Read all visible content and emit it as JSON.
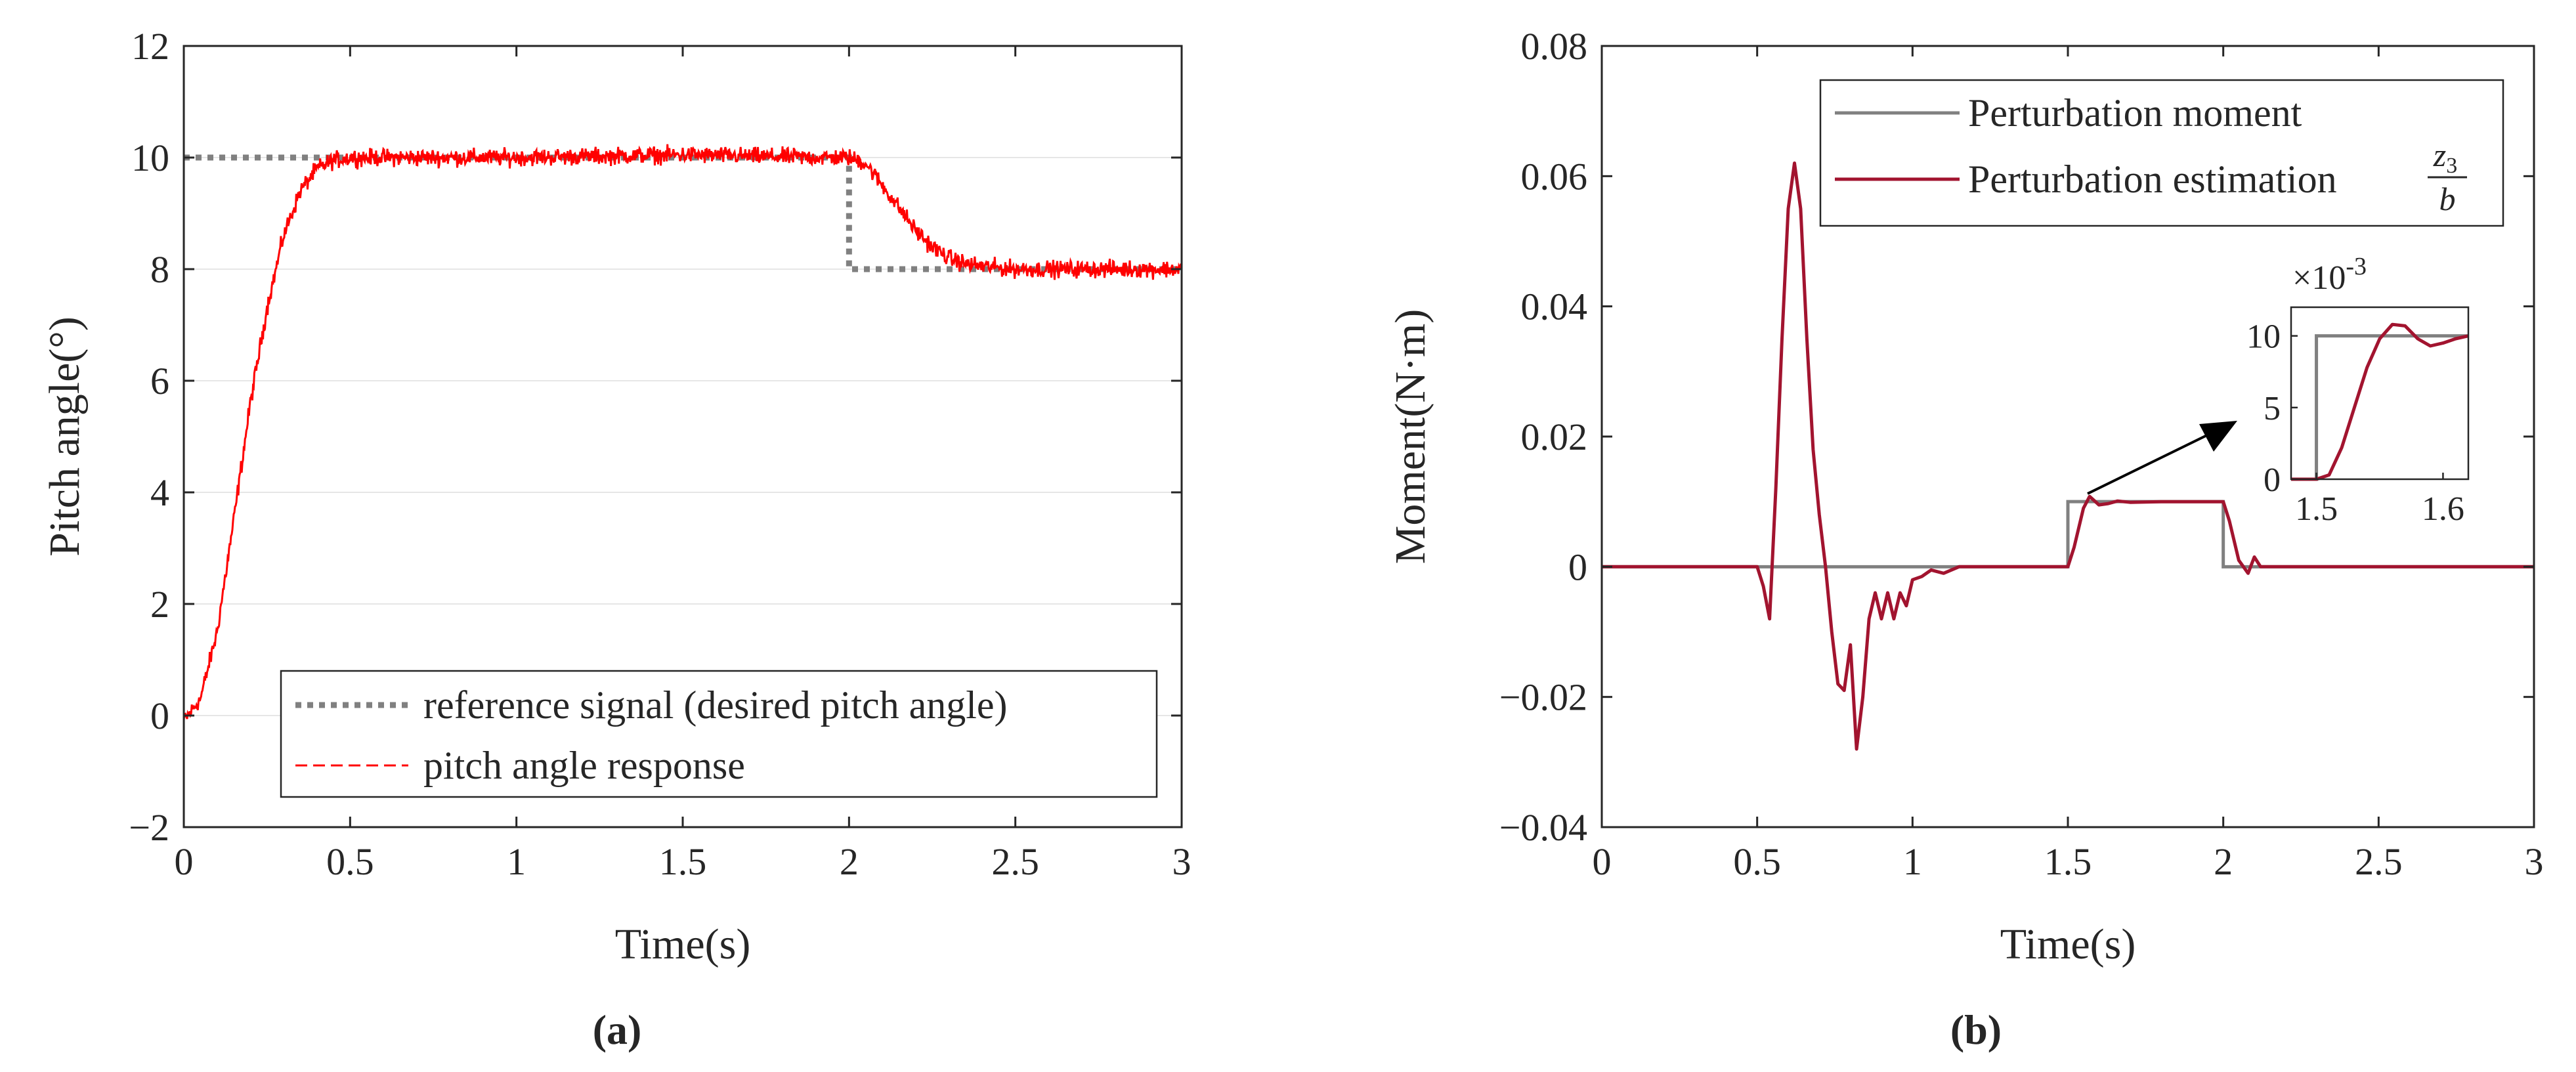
{
  "chart_data": [
    {
      "type": "line",
      "subfigure_label": "(a)",
      "xlabel": "Time(s)",
      "ylabel": "Pitch angle(°)",
      "xlim": [
        0,
        3
      ],
      "ylim": [
        -2,
        12
      ],
      "xticks": [
        0,
        0.5,
        1,
        1.5,
        2,
        2.5,
        3
      ],
      "xtick_labels": [
        "0",
        "0.5",
        "1",
        "1.5",
        "2",
        "2.5",
        "3"
      ],
      "yticks": [
        -2,
        0,
        2,
        4,
        6,
        8,
        10,
        12
      ],
      "ytick_labels": [
        "−2",
        "0",
        "2",
        "4",
        "6",
        "8",
        "10",
        "12"
      ],
      "grid": "horizontal",
      "legend_position": "bottom-right",
      "series": [
        {
          "name": "reference signal (desired pitch angle)",
          "color": "#808080",
          "style": "dotted",
          "x": [
            0,
            2,
            2,
            3
          ],
          "y": [
            10,
            10,
            8,
            8
          ]
        },
        {
          "name": "pitch angle response",
          "color": "#ff0000",
          "style": "dashed",
          "x": [
            0,
            0.05,
            0.1,
            0.15,
            0.2,
            0.25,
            0.3,
            0.35,
            0.4,
            0.45,
            0.5,
            0.6,
            1.0,
            1.5,
            1.9,
            2.0,
            2.05,
            2.1,
            2.15,
            2.2,
            2.25,
            2.3,
            2.35,
            2.4,
            2.5,
            3.0
          ],
          "y": [
            -0.1,
            0.3,
            1.5,
            3.5,
            5.6,
            7.3,
            8.6,
            9.4,
            9.8,
            9.95,
            10.0,
            10.0,
            10.0,
            10.05,
            10.0,
            10.0,
            9.9,
            9.5,
            9.1,
            8.7,
            8.4,
            8.2,
            8.1,
            8.05,
            8.0,
            8.0
          ],
          "noise_amplitude": 0.15
        }
      ]
    },
    {
      "type": "line",
      "subfigure_label": "(b)",
      "xlabel": "Time(s)",
      "ylabel": "Moment(N·m)",
      "xlim": [
        0,
        3
      ],
      "ylim": [
        -0.04,
        0.08
      ],
      "xticks": [
        0,
        0.5,
        1,
        1.5,
        2,
        2.5,
        3
      ],
      "xtick_labels": [
        "0",
        "0.5",
        "1",
        "1.5",
        "2",
        "2.5",
        "3"
      ],
      "yticks": [
        -0.04,
        -0.02,
        0,
        0.02,
        0.04,
        0.06,
        0.08
      ],
      "ytick_labels": [
        "−0.04",
        "−0.02",
        "0",
        "0.02",
        "0.04",
        "0.06",
        "0.08"
      ],
      "grid": "none",
      "legend_position": "top-right",
      "series": [
        {
          "name": "Perturbation moment",
          "color": "#808080",
          "x": [
            0,
            1.5,
            1.5,
            2.0,
            2.0,
            3.0
          ],
          "y": [
            0,
            0,
            0.01,
            0.01,
            0,
            0
          ]
        },
        {
          "name": "Perturbation estimation",
          "legend_math": {
            "numerator": "z",
            "subscript": "3",
            "denominator": "b"
          },
          "color": "#a2142f",
          "x": [
            0,
            0.5,
            0.52,
            0.54,
            0.56,
            0.58,
            0.6,
            0.62,
            0.64,
            0.66,
            0.68,
            0.7,
            0.72,
            0.74,
            0.76,
            0.78,
            0.8,
            0.82,
            0.84,
            0.86,
            0.88,
            0.9,
            0.92,
            0.94,
            0.96,
            0.98,
            1.0,
            1.03,
            1.06,
            1.1,
            1.15,
            1.2,
            1.3,
            1.5,
            1.52,
            1.55,
            1.57,
            1.6,
            1.63,
            1.66,
            1.7,
            1.8,
            2.0,
            2.02,
            2.05,
            2.08,
            2.1,
            2.12,
            2.15,
            3.0
          ],
          "y": [
            0,
            0,
            -0.003,
            -0.008,
            0.012,
            0.035,
            0.055,
            0.062,
            0.055,
            0.035,
            0.018,
            0.008,
            0.0,
            -0.01,
            -0.018,
            -0.019,
            -0.012,
            -0.028,
            -0.02,
            -0.008,
            -0.004,
            -0.008,
            -0.004,
            -0.008,
            -0.004,
            -0.006,
            -0.002,
            -0.0015,
            -0.0005,
            -0.001,
            0.0,
            0.0,
            0.0,
            0.0,
            0.003,
            0.009,
            0.0108,
            0.0095,
            0.0097,
            0.0101,
            0.0099,
            0.01,
            0.01,
            0.007,
            0.001,
            -0.001,
            0.0015,
            0.0,
            0.0,
            0.0
          ]
        }
      ],
      "inset": {
        "exponent_label": "×10^-3",
        "exponent_base": "×10",
        "exponent_power": "-3",
        "xlim": [
          1.48,
          1.62
        ],
        "ylim": [
          0,
          12
        ],
        "xtick_labels": [
          "1.5",
          "1.6"
        ],
        "ytick_labels": [
          "0",
          "5",
          "10"
        ],
        "moment_x": [
          1.48,
          1.5,
          1.5,
          1.62
        ],
        "moment_y": [
          0,
          0,
          10,
          10
        ],
        "estimation_x": [
          1.48,
          1.5,
          1.51,
          1.52,
          1.53,
          1.54,
          1.55,
          1.56,
          1.57,
          1.58,
          1.59,
          1.6,
          1.61,
          1.62
        ],
        "estimation_y": [
          0,
          0,
          0.3,
          2.2,
          5.0,
          7.8,
          9.8,
          10.8,
          10.7,
          9.8,
          9.3,
          9.5,
          9.8,
          10.0
        ]
      }
    }
  ]
}
